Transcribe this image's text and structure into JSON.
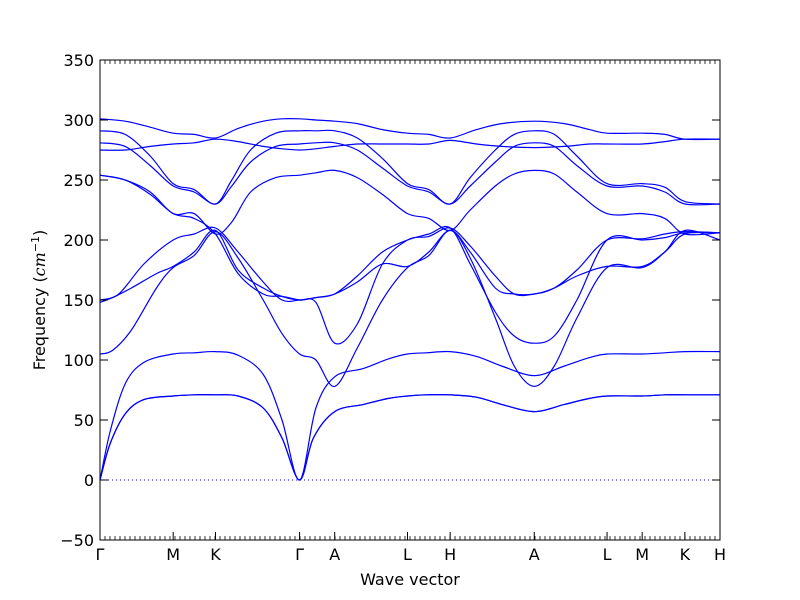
{
  "chart_data": {
    "type": "line",
    "title": "",
    "xlabel": "Wave vector",
    "ylabel_text": "Frequency (",
    "ylabel_unit": "cm",
    "ylabel_exp": "−1",
    "ylabel_close": ")",
    "ylim": [
      -50,
      350
    ],
    "yticks": [
      -50,
      0,
      50,
      100,
      150,
      200,
      250,
      300,
      350
    ],
    "xticks": [
      {
        "label": "Γ",
        "x": 0.0
      },
      {
        "label": "M",
        "x": 0.583
      },
      {
        "label": "K",
        "x": 0.92
      },
      {
        "label": "Γ",
        "x": 1.59
      },
      {
        "label": "A",
        "x": 1.87
      },
      {
        "label": "L",
        "x": 2.45
      },
      {
        "label": "H",
        "x": 2.79
      },
      {
        "label": "A",
        "x": 3.46
      },
      {
        "label": "L",
        "x": 4.04
      },
      {
        "label": "M",
        "x": 4.32
      },
      {
        "label": "K",
        "x": 4.66
      },
      {
        "label": "H",
        "x": 4.94
      }
    ],
    "xlim": [
      0,
      4.94
    ],
    "grid": false,
    "zero_line": {
      "y": 0,
      "style": "dotted"
    },
    "series_color": "#0000ff",
    "series": [
      {
        "x": [
          0,
          0.08,
          0.2,
          0.35,
          0.583,
          0.75,
          0.92,
          1.1,
          1.3,
          1.45,
          1.59,
          1.7,
          1.87,
          2.1,
          2.3,
          2.45,
          2.6,
          2.79,
          3.0,
          3.2,
          3.46,
          3.7,
          3.9,
          4.04,
          4.32,
          4.5,
          4.66,
          4.94
        ],
        "y": [
          0,
          30,
          55,
          67,
          70,
          71,
          71,
          70,
          60,
          35,
          0,
          35,
          57,
          63,
          68,
          70,
          71,
          71,
          69,
          63,
          57,
          63,
          68,
          70,
          70,
          71,
          71,
          71
        ]
      },
      {
        "x": [
          0,
          0.08,
          0.2,
          0.35,
          0.583,
          0.75,
          0.92,
          1.1,
          1.3,
          1.45,
          1.59,
          1.7,
          1.87,
          2.1,
          2.3,
          2.45,
          2.6,
          2.79,
          3.0,
          3.2,
          3.46,
          3.7,
          3.9,
          4.04,
          4.32,
          4.5,
          4.66,
          4.94
        ],
        "y": [
          0,
          30,
          55,
          67,
          70,
          71,
          71,
          70,
          60,
          35,
          0,
          35,
          57,
          63,
          68,
          70,
          71,
          71,
          69,
          63,
          57,
          63,
          68,
          70,
          70,
          71,
          71,
          71
        ]
      },
      {
        "x": [
          0,
          0.08,
          0.2,
          0.35,
          0.583,
          0.75,
          0.92,
          1.1,
          1.3,
          1.45,
          1.59,
          1.72,
          1.87,
          2.1,
          2.3,
          2.45,
          2.6,
          2.79,
          3.0,
          3.2,
          3.46,
          3.7,
          3.9,
          4.04,
          4.32,
          4.5,
          4.66,
          4.94
        ],
        "y": [
          0,
          40,
          80,
          98,
          105,
          106,
          107,
          104,
          88,
          50,
          0,
          60,
          86,
          93,
          101,
          105,
          106,
          107,
          103,
          95,
          87,
          95,
          102,
          105,
          105,
          106,
          107,
          107
        ]
      },
      {
        "x": [
          0,
          0.1,
          0.25,
          0.45,
          0.583,
          0.75,
          0.92,
          1.1,
          1.3,
          1.45,
          1.59,
          1.72,
          1.87,
          2.05,
          2.25,
          2.45,
          2.62,
          2.79,
          2.95,
          3.15,
          3.3,
          3.46,
          3.62,
          3.8,
          4.04,
          4.32,
          4.5,
          4.66,
          4.94
        ],
        "y": [
          105,
          108,
          125,
          160,
          177,
          187,
          207,
          185,
          150,
          122,
          105,
          100,
          78,
          110,
          150,
          177,
          187,
          208,
          185,
          135,
          95,
          78,
          95,
          135,
          177,
          177,
          190,
          208,
          200
        ]
      },
      {
        "x": [
          0,
          0.1,
          0.25,
          0.45,
          0.583,
          0.75,
          0.92,
          1.1,
          1.3,
          1.45,
          1.59,
          1.72,
          1.87,
          2.05,
          2.25,
          2.45,
          2.62,
          2.79,
          2.95,
          3.15,
          3.3,
          3.46,
          3.62,
          3.8,
          4.04,
          4.32,
          4.5,
          4.66,
          4.94
        ],
        "y": [
          148,
          152,
          160,
          172,
          178,
          190,
          208,
          175,
          160,
          153,
          150,
          152,
          155,
          165,
          180,
          178,
          190,
          208,
          190,
          160,
          155,
          155,
          160,
          170,
          178,
          178,
          190,
          205,
          206
        ]
      },
      {
        "x": [
          0,
          0.15,
          0.35,
          0.583,
          0.75,
          0.92,
          1.1,
          1.3,
          1.45,
          1.59,
          1.72,
          1.87,
          2.05,
          2.25,
          2.45,
          2.62,
          2.79,
          2.95,
          3.15,
          3.3,
          3.46,
          3.62,
          3.8,
          4.04,
          4.32,
          4.5,
          4.66,
          4.94
        ],
        "y": [
          150,
          155,
          180,
          200,
          205,
          210,
          190,
          165,
          150,
          150,
          152,
          155,
          170,
          190,
          200,
          205,
          210,
          180,
          140,
          120,
          114,
          120,
          150,
          200,
          200,
          202,
          206,
          206
        ]
      },
      {
        "x": [
          0,
          0.2,
          0.4,
          0.583,
          0.75,
          0.92,
          1.1,
          1.3,
          1.45,
          1.59,
          1.72,
          1.87,
          2.05,
          2.25,
          2.45,
          2.62,
          2.79,
          2.95,
          3.15,
          3.3,
          3.46,
          3.62,
          3.8,
          4.04,
          4.32,
          4.5,
          4.66,
          4.94
        ],
        "y": [
          254,
          250,
          238,
          222,
          218,
          205,
          172,
          155,
          153,
          150,
          148,
          114,
          130,
          180,
          200,
          203,
          210,
          195,
          170,
          155,
          155,
          160,
          175,
          200,
          201,
          205,
          207,
          206
        ]
      },
      {
        "x": [
          0,
          0.2,
          0.4,
          0.583,
          0.75,
          0.92,
          1.05,
          1.2,
          1.4,
          1.59,
          1.72,
          1.87,
          2.05,
          2.25,
          2.45,
          2.62,
          2.79,
          2.95,
          3.15,
          3.3,
          3.46,
          3.62,
          3.8,
          4.04,
          4.32,
          4.5,
          4.66,
          4.94
        ],
        "y": [
          254,
          250,
          240,
          222,
          222,
          205,
          215,
          240,
          252,
          254,
          256,
          258,
          252,
          238,
          222,
          218,
          208,
          225,
          245,
          255,
          258,
          255,
          240,
          222,
          222,
          218,
          205,
          206
        ]
      },
      {
        "x": [
          0,
          0.2,
          0.4,
          0.583,
          0.75,
          0.92,
          1.05,
          1.2,
          1.4,
          1.59,
          1.72,
          1.87,
          2.05,
          2.25,
          2.45,
          2.62,
          2.79,
          2.95,
          3.15,
          3.3,
          3.46,
          3.62,
          3.8,
          4.04,
          4.32,
          4.5,
          4.66,
          4.94
        ],
        "y": [
          281,
          278,
          262,
          245,
          240,
          230,
          245,
          265,
          278,
          280,
          281,
          281,
          275,
          260,
          245,
          240,
          230,
          245,
          265,
          278,
          281,
          278,
          262,
          245,
          245,
          240,
          230,
          230
        ]
      },
      {
        "x": [
          0,
          0.2,
          0.4,
          0.583,
          0.75,
          0.92,
          1.05,
          1.2,
          1.4,
          1.59,
          1.72,
          1.87,
          2.05,
          2.25,
          2.45,
          2.62,
          2.79,
          2.95,
          3.15,
          3.3,
          3.46,
          3.62,
          3.8,
          4.04,
          4.32,
          4.5,
          4.66,
          4.94
        ],
        "y": [
          291,
          288,
          270,
          247,
          242,
          230,
          250,
          275,
          289,
          291,
          291,
          291,
          285,
          268,
          247,
          242,
          230,
          252,
          275,
          288,
          291,
          288,
          270,
          247,
          247,
          244,
          232,
          230
        ]
      },
      {
        "x": [
          0,
          0.2,
          0.4,
          0.583,
          0.75,
          0.92,
          1.1,
          1.3,
          1.45,
          1.59,
          1.72,
          1.87,
          2.05,
          2.25,
          2.45,
          2.62,
          2.79,
          3.0,
          3.2,
          3.46,
          3.7,
          3.9,
          4.04,
          4.32,
          4.5,
          4.66,
          4.94
        ],
        "y": [
          275,
          275,
          278,
          280,
          281,
          284,
          282,
          278,
          276,
          275,
          276,
          278,
          280,
          280,
          280,
          280,
          283,
          280,
          278,
          277,
          278,
          280,
          280,
          280,
          282,
          284,
          284
        ]
      },
      {
        "x": [
          0,
          0.2,
          0.4,
          0.583,
          0.75,
          0.92,
          1.1,
          1.3,
          1.45,
          1.59,
          1.72,
          1.87,
          2.05,
          2.25,
          2.45,
          2.62,
          2.79,
          3.0,
          3.2,
          3.46,
          3.7,
          3.9,
          4.04,
          4.32,
          4.5,
          4.66,
          4.94
        ],
        "y": [
          301,
          299,
          294,
          289,
          288,
          285,
          293,
          299,
          301,
          301,
          300,
          299,
          297,
          292,
          289,
          288,
          285,
          292,
          297,
          299,
          297,
          292,
          289,
          289,
          288,
          284,
          284
        ]
      }
    ]
  }
}
